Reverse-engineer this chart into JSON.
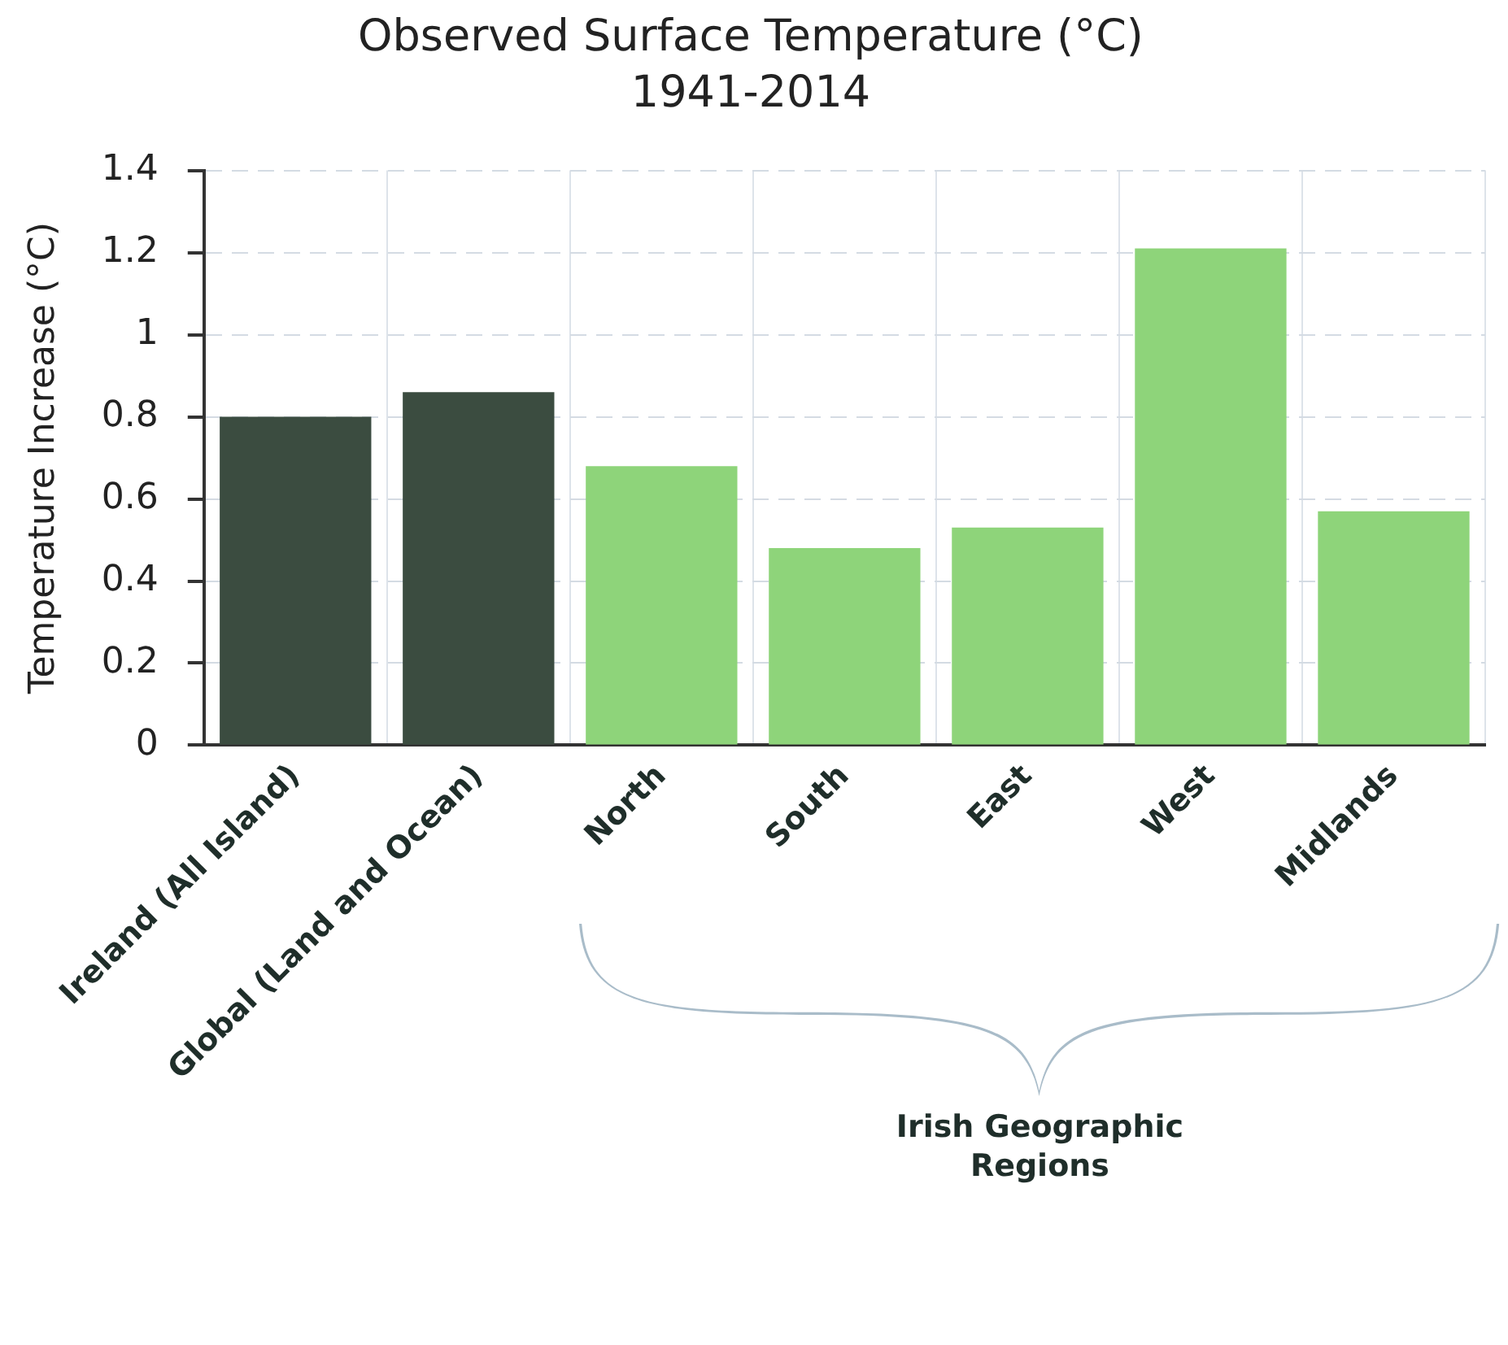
{
  "chart_data": {
    "type": "bar",
    "title": "Observed Surface Temperature (°C)",
    "subtitle": "1941-2014",
    "ylabel": "Temperature Increase (°C)",
    "categories": [
      "Ireland (All Island)",
      "Global (Land and Ocean)",
      "North",
      "South",
      "East",
      "West",
      "Midlands"
    ],
    "values": [
      0.8,
      0.86,
      0.68,
      0.48,
      0.53,
      1.21,
      0.57
    ],
    "colors": [
      "#3b4c40",
      "#3b4c40",
      "#8ed47a",
      "#8ed47a",
      "#8ed47a",
      "#8ed47a",
      "#8ed47a"
    ],
    "ylim": [
      0,
      1.4
    ],
    "yticks": [
      0,
      0.2,
      0.4,
      0.6,
      0.8,
      1,
      1.2,
      1.4
    ],
    "grid": true,
    "legend": false,
    "annotations": [
      "Irish Geographic Regions"
    ]
  }
}
